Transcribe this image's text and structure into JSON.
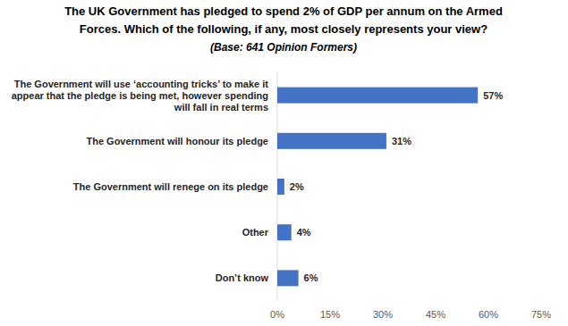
{
  "chart_data": {
    "type": "bar",
    "title": "The UK Government has pledged to spend 2% of GDP per annum on the Armed Forces. Which of the following, if any, most closely represents your view?",
    "subtitle": "(Base: 641 Opinion Formers)",
    "categories": [
      "The Government will use ‘accounting tricks’ to make it appear that the pledge is being met, however spending will fall in real terms",
      "The Government will honour its pledge",
      "The Government will renege on its pledge",
      "Other",
      "Don’t know"
    ],
    "values": [
      57,
      31,
      2,
      4,
      6
    ],
    "value_labels": [
      "57%",
      "31%",
      "2%",
      "4%",
      "6%"
    ],
    "color": "#4472c4",
    "orientation": "horizontal",
    "data_labels": true,
    "grid": false,
    "xlim": [
      0,
      75
    ],
    "xticks": [
      {
        "value": 0,
        "label": "0%"
      },
      {
        "value": 15,
        "label": "15%"
      },
      {
        "value": 30,
        "label": "30%"
      },
      {
        "value": 45,
        "label": "45%"
      },
      {
        "value": 60,
        "label": "60%"
      },
      {
        "value": 75,
        "label": "75%"
      }
    ]
  }
}
